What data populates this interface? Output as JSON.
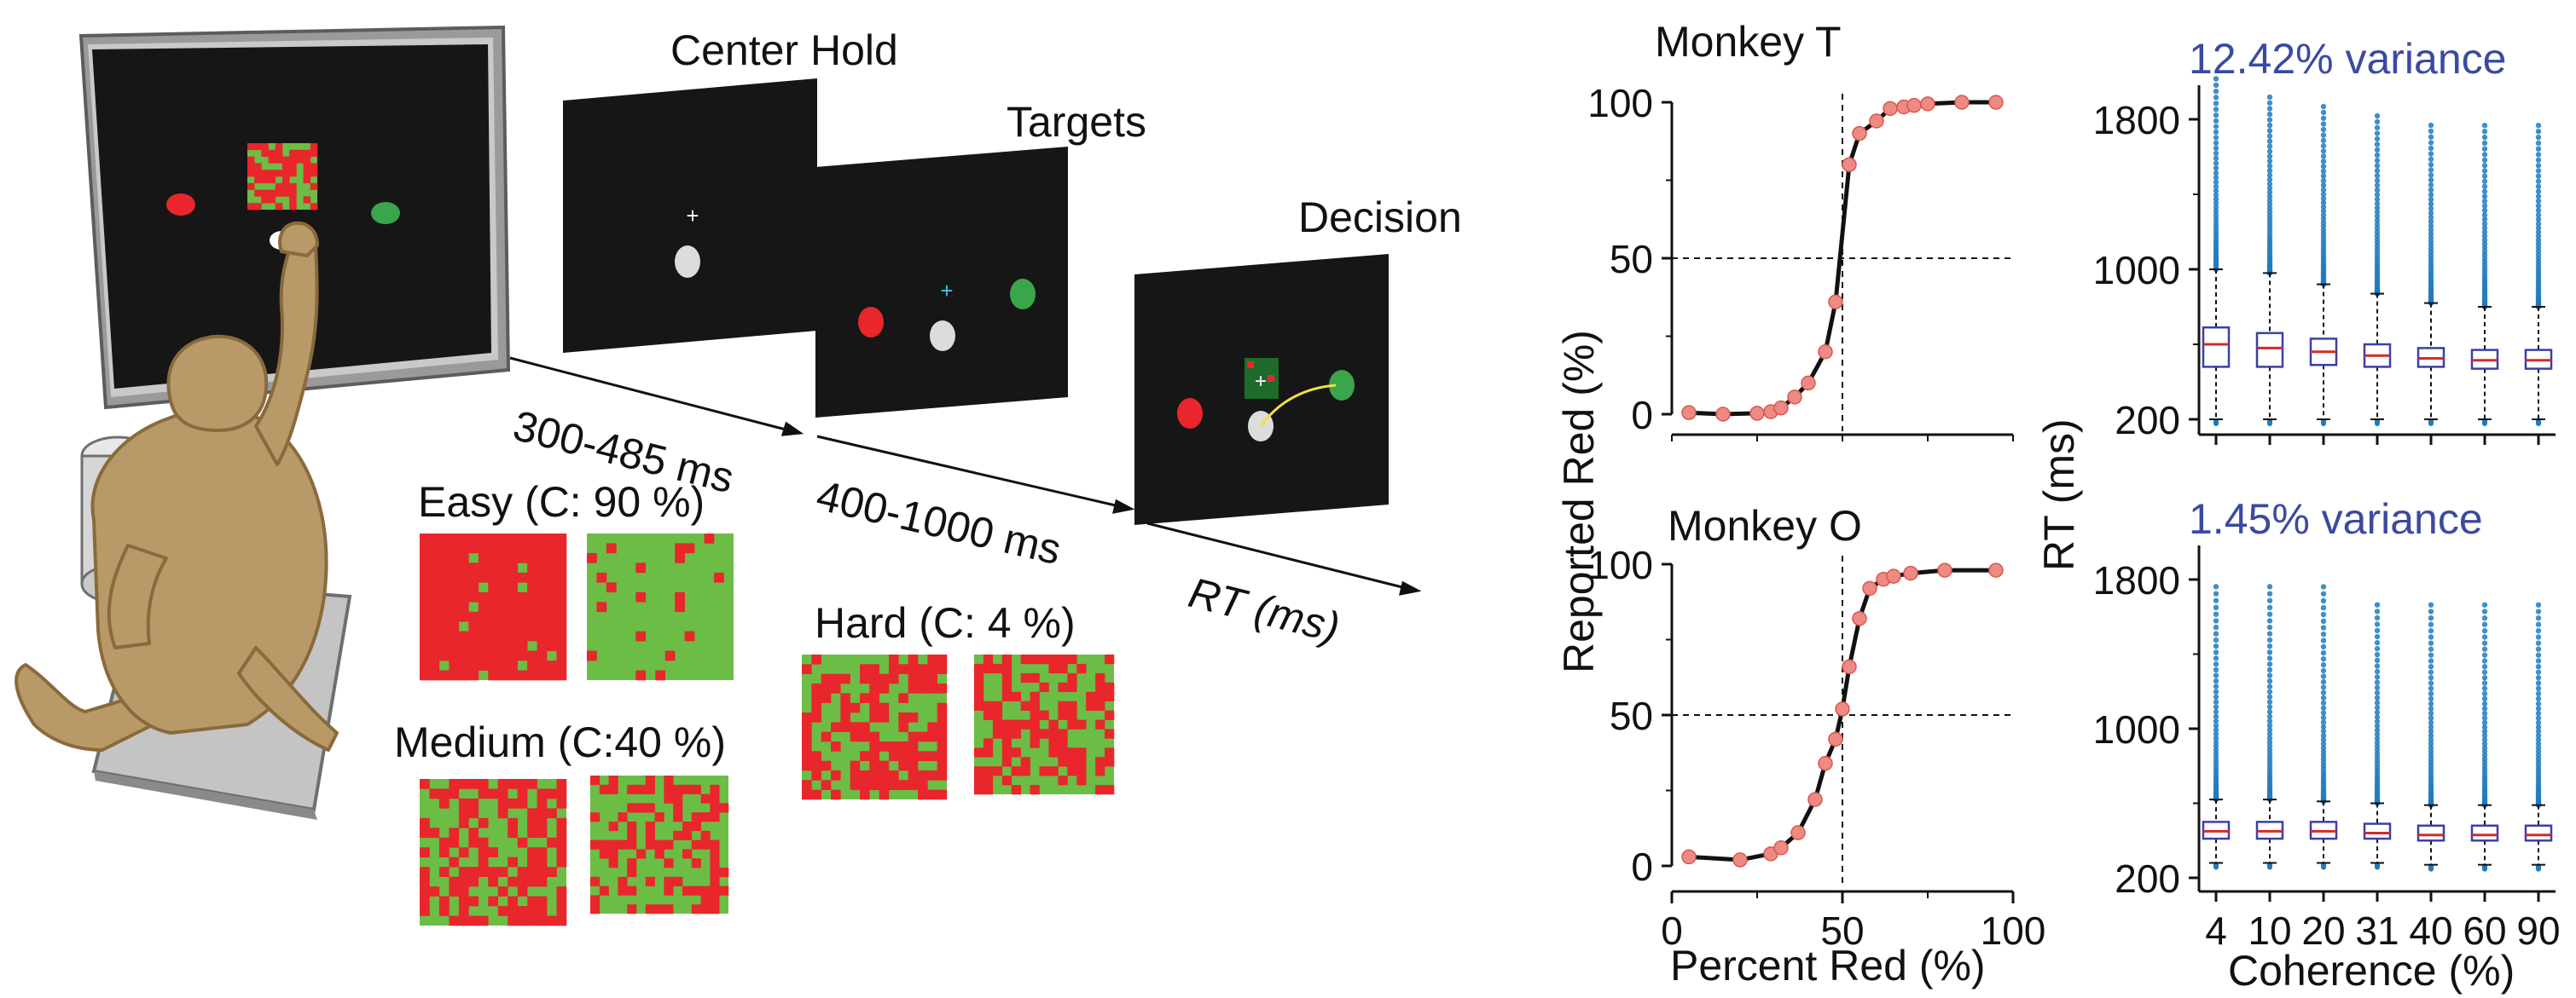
{
  "task": {
    "phases": [
      "Center Hold",
      "Targets",
      "Decision"
    ],
    "durations": [
      "300-485 ms",
      "400-1000 ms",
      "RT (ms)"
    ],
    "difficulty": {
      "easy": "Easy (C: 90 %)",
      "medium": "Medium (C:40 %)",
      "hard": "Hard (C: 4 %)"
    }
  },
  "psychometric": {
    "ylabel": "Reported Red (%)",
    "xlabel": "Percent Red (%)",
    "xticks": [
      "0",
      "50",
      "100"
    ],
    "yticks": [
      "0",
      "50",
      "100"
    ]
  },
  "rt": {
    "ylabel": "RT (ms)",
    "xlabel": "Coherence (%)",
    "xticks": [
      "4",
      "10",
      "20",
      "31",
      "40",
      "60",
      "90"
    ],
    "yticks": [
      "200",
      "1000",
      "1800"
    ]
  },
  "colors": {
    "red": "#e8262b",
    "green": "#6cbd45",
    "box_edge": "#3b3fa6",
    "median": "#d42a2a",
    "outlier": "#1f7bbf",
    "fit_point": "#ee8a84",
    "annotation": "#3b4aa0"
  },
  "chart_data": [
    {
      "type": "line",
      "title": "Monkey T",
      "xlabel": "Percent Red (%)",
      "ylabel": "Reported Red (%)",
      "xlim": [
        0,
        100
      ],
      "ylim": [
        0,
        100
      ],
      "reference_lines": {
        "x": 50,
        "y": 50
      },
      "x": [
        5,
        15,
        25,
        29,
        32,
        36,
        40,
        45,
        48,
        52,
        55,
        60,
        64,
        68,
        71,
        75,
        85,
        95
      ],
      "series": [
        {
          "values": [
            0.5,
            0,
            0.3,
            0.8,
            2,
            5.5,
            10,
            20,
            36,
            80,
            90,
            94,
            98,
            98.5,
            99,
            99.5,
            100,
            100
          ]
        }
      ]
    },
    {
      "type": "line",
      "title": "Monkey O",
      "xlabel": "Percent Red (%)",
      "ylabel": "Reported Red (%)",
      "xlim": [
        0,
        100
      ],
      "ylim": [
        0,
        100
      ],
      "reference_lines": {
        "x": 50,
        "y": 50
      },
      "x": [
        5,
        20,
        29,
        32,
        37,
        42,
        45,
        48,
        50,
        52,
        55,
        58,
        62,
        65,
        70,
        80,
        95
      ],
      "series": [
        {
          "values": [
            3,
            2,
            4,
            6,
            11,
            22,
            34,
            42,
            52,
            66,
            82,
            92,
            95,
            96,
            97,
            98,
            98
          ]
        }
      ]
    },
    {
      "type": "box",
      "title": "12.42% variance",
      "xlabel": "Coherence (%)",
      "ylabel": "RT (ms)",
      "ylim": [
        200,
        1800
      ],
      "categories": [
        "4",
        "10",
        "20",
        "31",
        "40",
        "60",
        "90"
      ],
      "median": [
        600,
        580,
        560,
        540,
        525,
        515,
        515
      ],
      "q1": [
        480,
        480,
        490,
        480,
        480,
        470,
        470
      ],
      "q3": [
        690,
        660,
        630,
        600,
        580,
        570,
        570
      ],
      "whisker_low": [
        200,
        200,
        200,
        200,
        200,
        200,
        200
      ],
      "whisker_high": [
        1000,
        980,
        920,
        870,
        820,
        800,
        800
      ],
      "outlier_max": [
        2050,
        1950,
        1900,
        1850,
        1800,
        1800,
        1800
      ]
    },
    {
      "type": "box",
      "title": "1.45% variance",
      "xlabel": "Coherence (%)",
      "ylabel": "RT (ms)",
      "ylim": [
        200,
        1800
      ],
      "categories": [
        "4",
        "10",
        "20",
        "31",
        "40",
        "60",
        "90"
      ],
      "median": [
        450,
        450,
        450,
        440,
        430,
        430,
        430
      ],
      "q1": [
        410,
        410,
        410,
        410,
        400,
        400,
        400
      ],
      "q3": [
        500,
        500,
        500,
        490,
        480,
        480,
        480
      ],
      "whisker_low": [
        280,
        280,
        280,
        280,
        270,
        270,
        270
      ],
      "whisker_high": [
        620,
        620,
        610,
        600,
        590,
        590,
        590
      ],
      "outlier_max": [
        1800,
        1800,
        1800,
        1700,
        1700,
        1700,
        1700
      ]
    }
  ]
}
